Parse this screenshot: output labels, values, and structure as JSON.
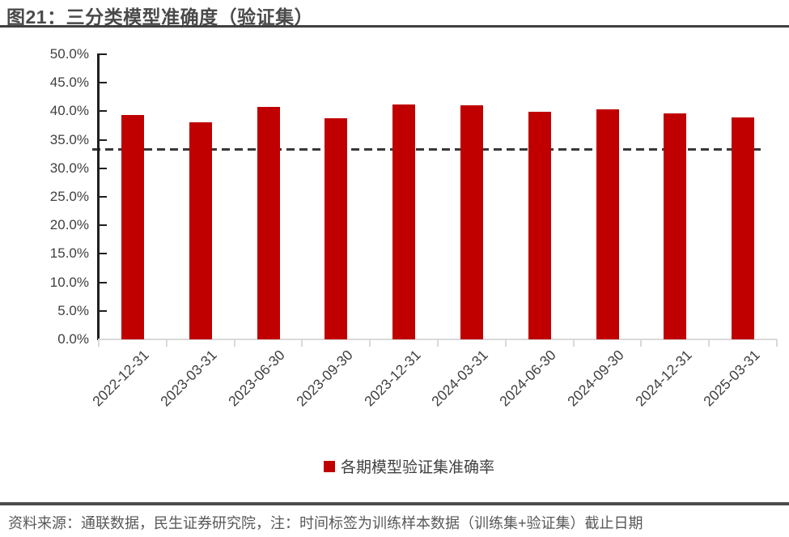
{
  "figure": {
    "title": "图21：三分类模型准确度（验证集）",
    "source_note": "资料来源：通联数据，民生证券研究院，注：时间标签为训练样本数据（训练集+验证集）截止日期"
  },
  "legend": {
    "label": "各期模型验证集准确率"
  },
  "colors": {
    "bar": "#C00000",
    "y_axis": "#1f1f1f",
    "x_baseline": "#d9d9d9",
    "reference_line": "#383838",
    "axis_text": "#404040",
    "title_text": "#4a4a4a",
    "rule": "#404040",
    "footer_rule": "#4d4d4d",
    "footer_text": "#595959"
  },
  "chart_data": {
    "type": "bar",
    "title": "图21：三分类模型准确度（验证集）",
    "categories": [
      "2022-12-31",
      "2023-03-31",
      "2023-06-30",
      "2023-09-30",
      "2023-12-31",
      "2024-03-31",
      "2024-06-30",
      "2024-09-30",
      "2024-12-31",
      "2025-03-31"
    ],
    "series": [
      {
        "name": "各期模型验证集准确率",
        "values": [
          39.4,
          38.1,
          40.7,
          38.8,
          41.2,
          41.0,
          39.9,
          40.3,
          39.6,
          38.9
        ]
      }
    ],
    "value_unit": "%",
    "ylim": [
      0,
      50
    ],
    "y_step": 5,
    "y_tick_labels": [
      "0.0%",
      "5.0%",
      "10.0%",
      "15.0%",
      "20.0%",
      "25.0%",
      "30.0%",
      "35.0%",
      "40.0%",
      "45.0%",
      "50.0%"
    ],
    "reference_line": 33.3,
    "grid": false,
    "legend_position": "bottom"
  }
}
